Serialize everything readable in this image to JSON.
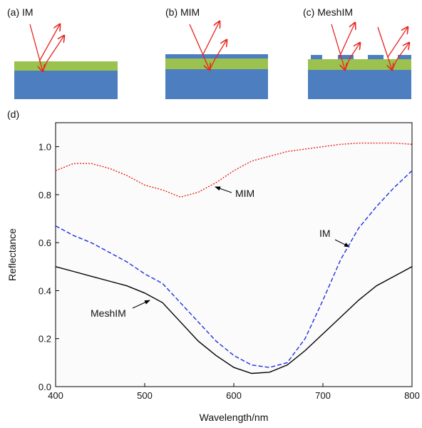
{
  "panels": [
    "(a) IM",
    "(b) MIM",
    "(c) MeshIM"
  ],
  "chart_data": {
    "type": "line",
    "panel_label": "(d)",
    "x_label": "Wavelength/nm",
    "y_label": "Reflectance",
    "annotations": [
      "MIM",
      "IM",
      "MeshIM"
    ],
    "x": [
      400,
      420,
      440,
      460,
      480,
      500,
      520,
      540,
      560,
      580,
      600,
      620,
      640,
      660,
      680,
      700,
      720,
      740,
      760,
      780,
      800
    ],
    "series": [
      {
        "name": "MIM",
        "color": "#e8231f",
        "line_style": "dotted",
        "values": [
          0.9,
          0.93,
          0.93,
          0.91,
          0.88,
          0.84,
          0.82,
          0.79,
          0.81,
          0.85,
          0.9,
          0.94,
          0.96,
          0.98,
          0.99,
          1.0,
          1.01,
          1.015,
          1.015,
          1.015,
          1.01
        ]
      },
      {
        "name": "IM",
        "color": "#1f2fe0",
        "line_style": "dashed",
        "values": [
          0.67,
          0.63,
          0.6,
          0.56,
          0.52,
          0.47,
          0.43,
          0.35,
          0.27,
          0.19,
          0.13,
          0.09,
          0.08,
          0.1,
          0.2,
          0.36,
          0.53,
          0.66,
          0.75,
          0.83,
          0.9
        ]
      },
      {
        "name": "MeshIM",
        "color": "#000000",
        "line_style": "solid",
        "values": [
          0.5,
          0.48,
          0.46,
          0.44,
          0.42,
          0.39,
          0.35,
          0.27,
          0.19,
          0.13,
          0.08,
          0.055,
          0.06,
          0.09,
          0.15,
          0.22,
          0.29,
          0.36,
          0.42,
          0.46,
          0.5
        ]
      }
    ],
    "xlim": [
      400,
      800
    ],
    "xticks": [
      400,
      500,
      600,
      700,
      800
    ],
    "ylim": [
      0,
      1.1
    ],
    "yticks": [
      {
        "value": 0,
        "label": "0.0"
      },
      {
        "value": 0.2,
        "label": "0.2"
      },
      {
        "value": 0.4,
        "label": "0.4"
      },
      {
        "value": 0.6,
        "label": "0.6"
      },
      {
        "value": 0.8,
        "label": "0.8"
      },
      {
        "value": 1.0,
        "label": "1.0"
      }
    ]
  }
}
